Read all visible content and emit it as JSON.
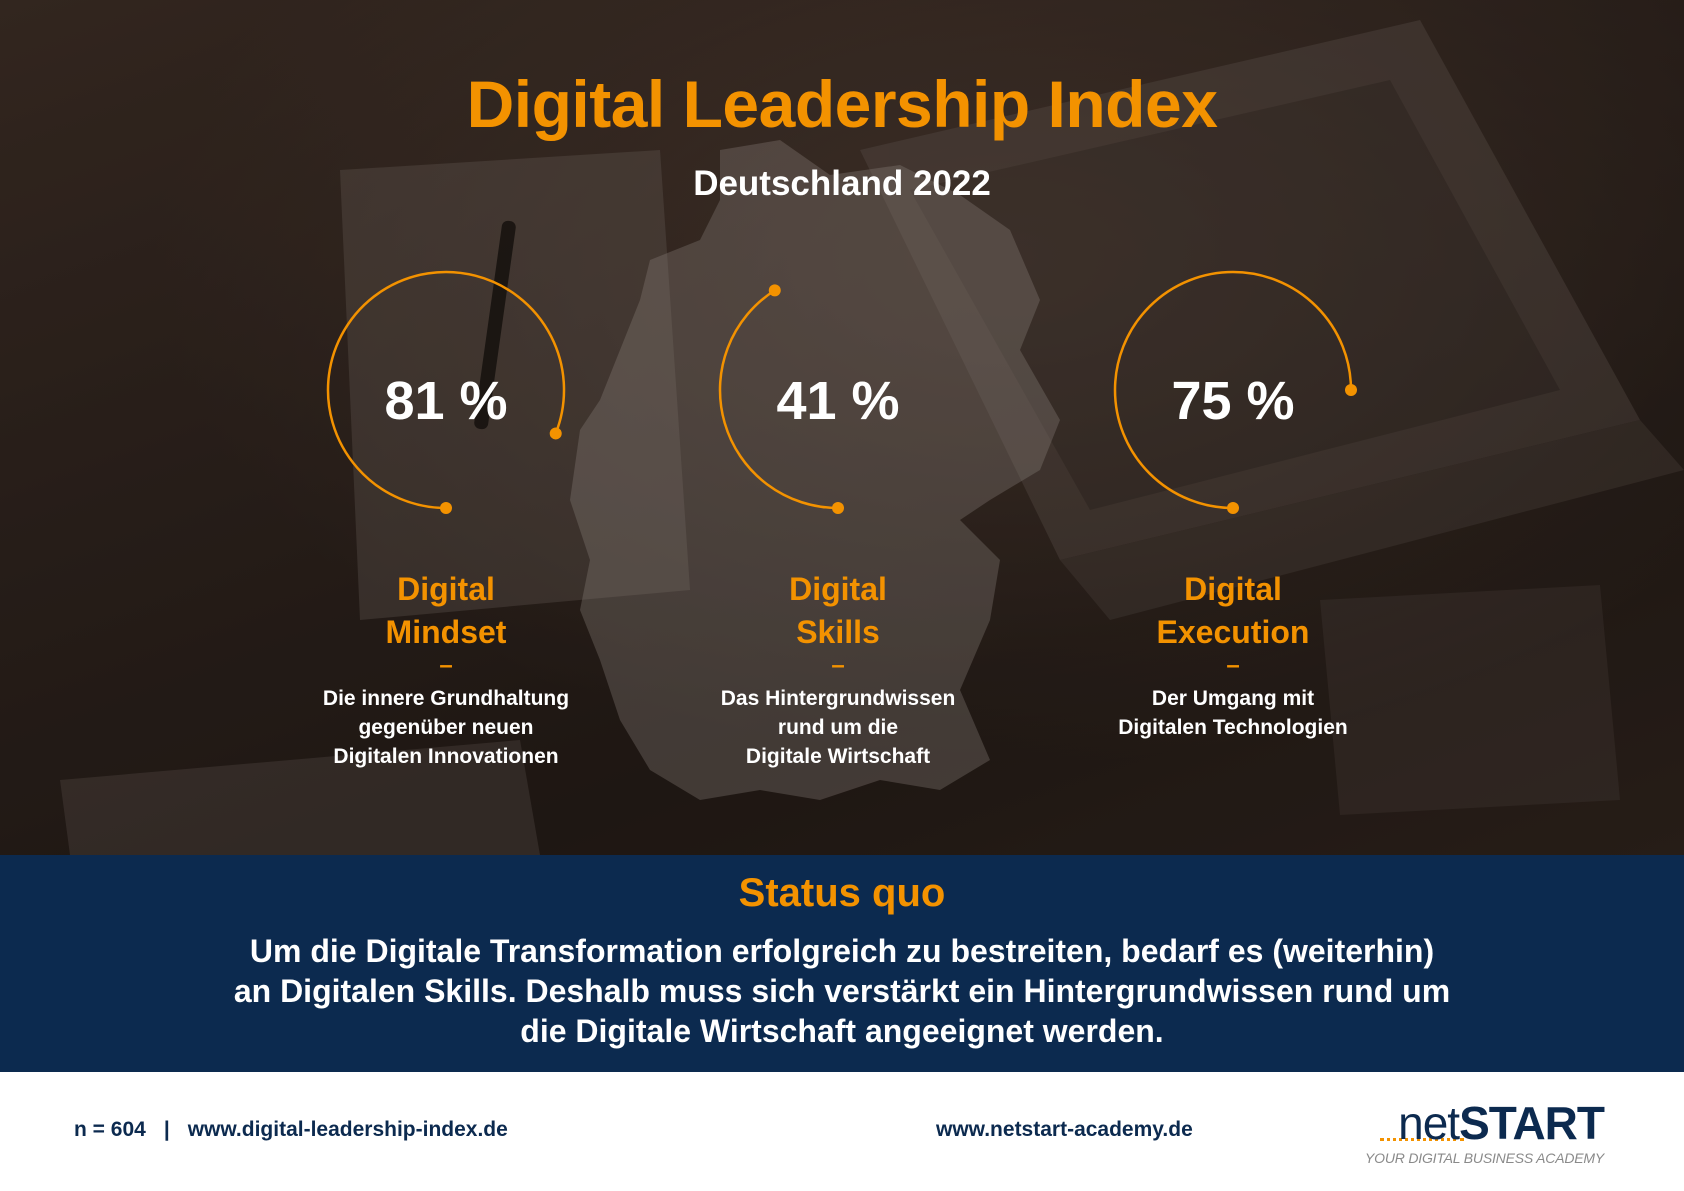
{
  "header": {
    "title": "Digital Leadership Index",
    "subtitle": "Deutschland 2022"
  },
  "metrics": [
    {
      "value_text": "81 %",
      "value": 81,
      "name_line1": "Digital",
      "name_line2": "Mindset",
      "dash": "–",
      "desc_line1": "Die innere Grundhaltung",
      "desc_line2": "gegenüber neuen",
      "desc_line3": "Digitalen Innovationen"
    },
    {
      "value_text": "41 %",
      "value": 41,
      "name_line1": "Digital",
      "name_line2": "Skills",
      "dash": "–",
      "desc_line1": "Das Hintergrundwissen",
      "desc_line2": "rund um die",
      "desc_line3": "Digitale Wirtschaft"
    },
    {
      "value_text": "75 %",
      "value": 75,
      "name_line1": "Digital",
      "name_line2": "Execution",
      "dash": "–",
      "desc_line1": "Der Umgang mit",
      "desc_line2": "Digitalen Technologien",
      "desc_line3": ""
    }
  ],
  "status": {
    "title": "Status quo",
    "line1": "Um die Digitale Transformation erfolgreich zu bestreiten, bedarf es (weiterhin)",
    "line2": "an Digitalen Skills. Deshalb muss sich verstärkt ein Hintergrundwissen rund um",
    "line3": "die Digitale Wirtschaft angeeignet werden."
  },
  "footer": {
    "sample": "n = 604",
    "separator": "|",
    "index_url": "www.digital-leadership-index.de",
    "academy_url": "www.netstart-academy.de",
    "logo_net": "net",
    "logo_start": "START",
    "logo_tagline": "YOUR DIGITAL BUSINESS ACADEMY"
  },
  "colors": {
    "accent": "#f39200",
    "navy": "#0c2a4f",
    "text_light": "#ffffff"
  }
}
